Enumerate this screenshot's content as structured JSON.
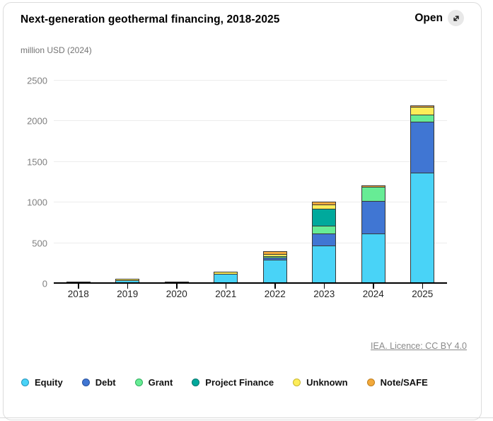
{
  "header": {
    "title": "Next-generation geothermal financing, 2018-2025",
    "open_label": "Open"
  },
  "chart": {
    "unit_label": "million USD (2024)"
  },
  "chart_data": {
    "type": "bar",
    "stacked": true,
    "title": "Next-generation geothermal financing, 2018-2025",
    "ylabel": "million USD (2024)",
    "xlabel": "",
    "categories": [
      "2018",
      "2019",
      "2020",
      "2021",
      "2022",
      "2023",
      "2024",
      "2025"
    ],
    "series": [
      {
        "name": "Equity",
        "color": "#49D3F7",
        "values": [
          6,
          45,
          17,
          118,
          292,
          470,
          618,
          1369
        ]
      },
      {
        "name": "Debt",
        "color": "#4076D3",
        "values": [
          0,
          0,
          0,
          0,
          29,
          145,
          398,
          621
        ]
      },
      {
        "name": "Grant",
        "color": "#67EC95",
        "values": [
          0,
          0,
          0,
          0,
          20,
          100,
          173,
          87
        ]
      },
      {
        "name": "Project Finance",
        "color": "#00A99C",
        "values": [
          14,
          0,
          10,
          0,
          0,
          203,
          0,
          0
        ]
      },
      {
        "name": "Unknown",
        "color": "#FDED59",
        "values": [
          0,
          12,
          0,
          32,
          23,
          52,
          0,
          95
        ]
      },
      {
        "name": "Note/SAFE",
        "color": "#F2A93B",
        "values": [
          0,
          0,
          0,
          0,
          37,
          35,
          20,
          17
        ]
      }
    ],
    "ylim": [
      0,
      2500
    ],
    "yticks": [
      0,
      500,
      1000,
      1500,
      2000,
      2500
    ],
    "grid": true,
    "legend_position": "bottom",
    "bar_outline_color": "#383838"
  },
  "legend": {
    "items": [
      {
        "label": "Equity",
        "fill": "#49D3F7",
        "stroke": "#2596BE"
      },
      {
        "label": "Debt",
        "fill": "#4076D3",
        "stroke": "#28519E"
      },
      {
        "label": "Grant",
        "fill": "#67EC95",
        "stroke": "#2FAF5E"
      },
      {
        "label": "Project Finance",
        "fill": "#00A99C",
        "stroke": "#00756C"
      },
      {
        "label": "Unknown",
        "fill": "#FDED59",
        "stroke": "#C9B72E"
      },
      {
        "label": "Note/SAFE",
        "fill": "#F2A93B",
        "stroke": "#BF7E1D"
      }
    ]
  },
  "footer": {
    "attribution": "IEA. Licence: CC BY 4.0"
  }
}
